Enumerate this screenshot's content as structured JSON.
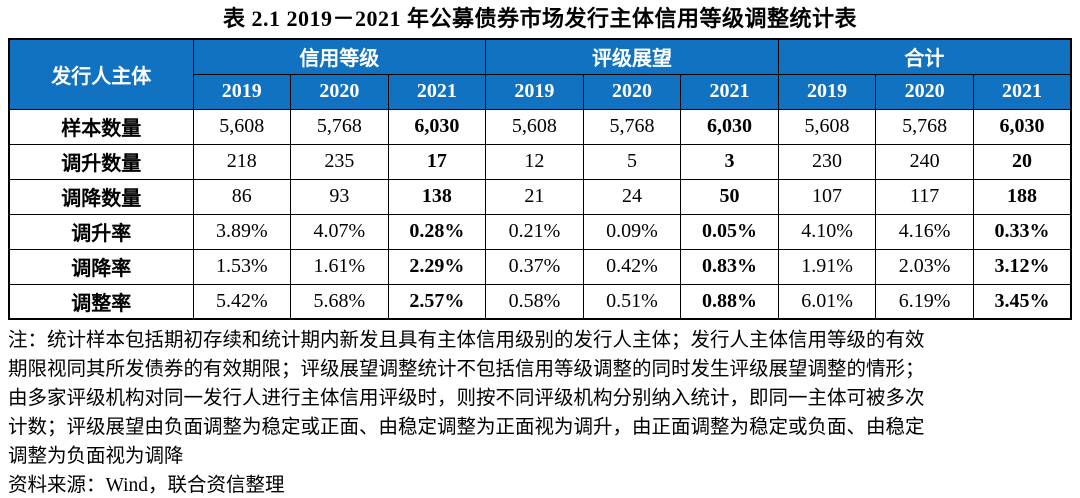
{
  "title": "表 2.1   2019－2021 年公募债券市场发行主体信用等级调整统计表",
  "table": {
    "corner_header": "发行人主体",
    "groups": [
      {
        "label": "信用等级"
      },
      {
        "label": "评级展望"
      },
      {
        "label": "合计"
      }
    ],
    "years": [
      "2019",
      "2020",
      "2021"
    ],
    "rows": [
      {
        "label": "样本数量",
        "values": [
          "5,608",
          "5,768",
          "6,030",
          "5,608",
          "5,768",
          "6,030",
          "5,608",
          "5,768",
          "6,030"
        ]
      },
      {
        "label": "调升数量",
        "values": [
          "218",
          "235",
          "17",
          "12",
          "5",
          "3",
          "230",
          "240",
          "20"
        ]
      },
      {
        "label": "调降数量",
        "values": [
          "86",
          "93",
          "138",
          "21",
          "24",
          "50",
          "107",
          "117",
          "188"
        ]
      },
      {
        "label": "调升率",
        "values": [
          "3.89%",
          "4.07%",
          "0.28%",
          "0.21%",
          "0.09%",
          "0.05%",
          "4.10%",
          "4.16%",
          "0.33%"
        ]
      },
      {
        "label": "调降率",
        "values": [
          "1.53%",
          "1.61%",
          "2.29%",
          "0.37%",
          "0.42%",
          "0.83%",
          "1.91%",
          "2.03%",
          "3.12%"
        ]
      },
      {
        "label": "调整率",
        "values": [
          "5.42%",
          "5.68%",
          "2.57%",
          "0.58%",
          "0.51%",
          "0.88%",
          "6.01%",
          "6.19%",
          "3.45%"
        ]
      }
    ],
    "bold_value_columns": [
      2,
      5,
      8
    ]
  },
  "notes": [
    "注：统计样本包括期初存续和统计期内新发且具有主体信用级别的发行人主体；发行人主体信用等级的有效",
    "期限视同其所发债券的有效期限；评级展望调整统计不包括信用等级调整的同时发生评级展望调整的情形；",
    "由多家评级机构对同一发行人进行主体信用评级时，则按不同评级机构分别纳入统计，即同一主体可被多次",
    "计数；评级展望由负面调整为稳定或正面、由稳定调整为正面视为调升，由正面调整为稳定或负面、由稳定",
    "调整为负面视为调降"
  ],
  "source": "资料来源：Wind，联合资信整理",
  "colors": {
    "header_bg": "#1272C2",
    "header_text": "#FFFFFF",
    "border": "#000000"
  }
}
